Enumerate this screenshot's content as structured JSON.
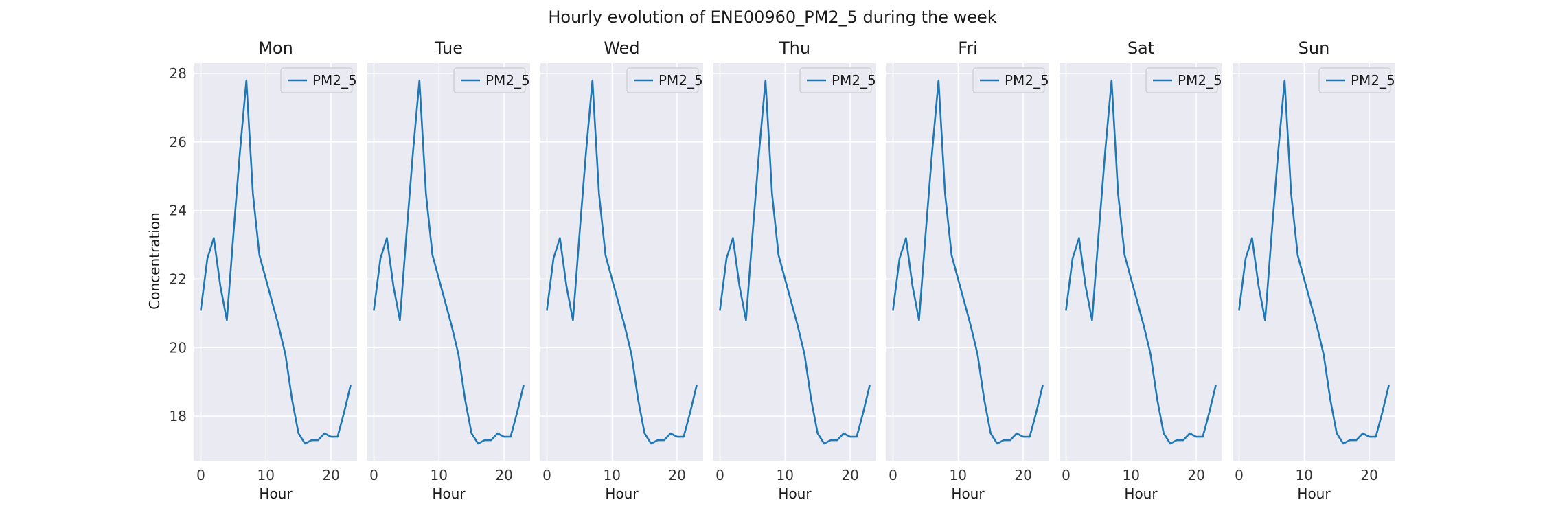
{
  "chart_data": {
    "type": "line",
    "title": "Hourly evolution of ENE00960_PM2_5 during the week",
    "xlabel": "Hour",
    "ylabel": "Concentration",
    "xlim": [
      -1,
      24
    ],
    "ylim": [
      16.7,
      28.3
    ],
    "xticks": [
      0,
      10,
      20
    ],
    "yticks": [
      18,
      20,
      22,
      24,
      26,
      28
    ],
    "grid": true,
    "legend_position": "top-right",
    "line_color": "#1f77b4",
    "panel_bg": "#eaeaf2",
    "panels": [
      {
        "title": "Mon",
        "series": [
          {
            "name": "PM2_5",
            "x": [
              0,
              1,
              2,
              3,
              4,
              5,
              6,
              7,
              8,
              9,
              10,
              11,
              12,
              13,
              14,
              15,
              16,
              17,
              18,
              19,
              20,
              21,
              22,
              23
            ],
            "values": [
              21.1,
              22.6,
              23.2,
              21.8,
              20.8,
              23.3,
              25.7,
              27.8,
              24.5,
              22.7,
              22.0,
              21.3,
              20.6,
              19.8,
              18.5,
              17.5,
              17.2,
              17.3,
              17.3,
              17.5,
              17.4,
              17.4,
              18.1,
              18.9
            ]
          }
        ]
      },
      {
        "title": "Tue",
        "series": [
          {
            "name": "PM2_5",
            "x": [
              0,
              1,
              2,
              3,
              4,
              5,
              6,
              7,
              8,
              9,
              10,
              11,
              12,
              13,
              14,
              15,
              16,
              17,
              18,
              19,
              20,
              21,
              22,
              23
            ],
            "values": [
              21.1,
              22.6,
              23.2,
              21.8,
              20.8,
              23.3,
              25.7,
              27.8,
              24.5,
              22.7,
              22.0,
              21.3,
              20.6,
              19.8,
              18.5,
              17.5,
              17.2,
              17.3,
              17.3,
              17.5,
              17.4,
              17.4,
              18.1,
              18.9
            ]
          }
        ]
      },
      {
        "title": "Wed",
        "series": [
          {
            "name": "PM2_5",
            "x": [
              0,
              1,
              2,
              3,
              4,
              5,
              6,
              7,
              8,
              9,
              10,
              11,
              12,
              13,
              14,
              15,
              16,
              17,
              18,
              19,
              20,
              21,
              22,
              23
            ],
            "values": [
              21.1,
              22.6,
              23.2,
              21.8,
              20.8,
              23.3,
              25.7,
              27.8,
              24.5,
              22.7,
              22.0,
              21.3,
              20.6,
              19.8,
              18.5,
              17.5,
              17.2,
              17.3,
              17.3,
              17.5,
              17.4,
              17.4,
              18.1,
              18.9
            ]
          }
        ]
      },
      {
        "title": "Thu",
        "series": [
          {
            "name": "PM2_5",
            "x": [
              0,
              1,
              2,
              3,
              4,
              5,
              6,
              7,
              8,
              9,
              10,
              11,
              12,
              13,
              14,
              15,
              16,
              17,
              18,
              19,
              20,
              21,
              22,
              23
            ],
            "values": [
              21.1,
              22.6,
              23.2,
              21.8,
              20.8,
              23.3,
              25.7,
              27.8,
              24.5,
              22.7,
              22.0,
              21.3,
              20.6,
              19.8,
              18.5,
              17.5,
              17.2,
              17.3,
              17.3,
              17.5,
              17.4,
              17.4,
              18.1,
              18.9
            ]
          }
        ]
      },
      {
        "title": "Fri",
        "series": [
          {
            "name": "PM2_5",
            "x": [
              0,
              1,
              2,
              3,
              4,
              5,
              6,
              7,
              8,
              9,
              10,
              11,
              12,
              13,
              14,
              15,
              16,
              17,
              18,
              19,
              20,
              21,
              22,
              23
            ],
            "values": [
              21.1,
              22.6,
              23.2,
              21.8,
              20.8,
              23.3,
              25.7,
              27.8,
              24.5,
              22.7,
              22.0,
              21.3,
              20.6,
              19.8,
              18.5,
              17.5,
              17.2,
              17.3,
              17.3,
              17.5,
              17.4,
              17.4,
              18.1,
              18.9
            ]
          }
        ]
      },
      {
        "title": "Sat",
        "series": [
          {
            "name": "PM2_5",
            "x": [
              0,
              1,
              2,
              3,
              4,
              5,
              6,
              7,
              8,
              9,
              10,
              11,
              12,
              13,
              14,
              15,
              16,
              17,
              18,
              19,
              20,
              21,
              22,
              23
            ],
            "values": [
              21.1,
              22.6,
              23.2,
              21.8,
              20.8,
              23.3,
              25.7,
              27.8,
              24.5,
              22.7,
              22.0,
              21.3,
              20.6,
              19.8,
              18.5,
              17.5,
              17.2,
              17.3,
              17.3,
              17.5,
              17.4,
              17.4,
              18.1,
              18.9
            ]
          }
        ]
      },
      {
        "title": "Sun",
        "series": [
          {
            "name": "PM2_5",
            "x": [
              0,
              1,
              2,
              3,
              4,
              5,
              6,
              7,
              8,
              9,
              10,
              11,
              12,
              13,
              14,
              15,
              16,
              17,
              18,
              19,
              20,
              21,
              22,
              23
            ],
            "values": [
              21.1,
              22.6,
              23.2,
              21.8,
              20.8,
              23.3,
              25.7,
              27.8,
              24.5,
              22.7,
              22.0,
              21.3,
              20.6,
              19.8,
              18.5,
              17.5,
              17.2,
              17.3,
              17.3,
              17.5,
              17.4,
              17.4,
              18.1,
              18.9
            ]
          }
        ]
      }
    ]
  }
}
